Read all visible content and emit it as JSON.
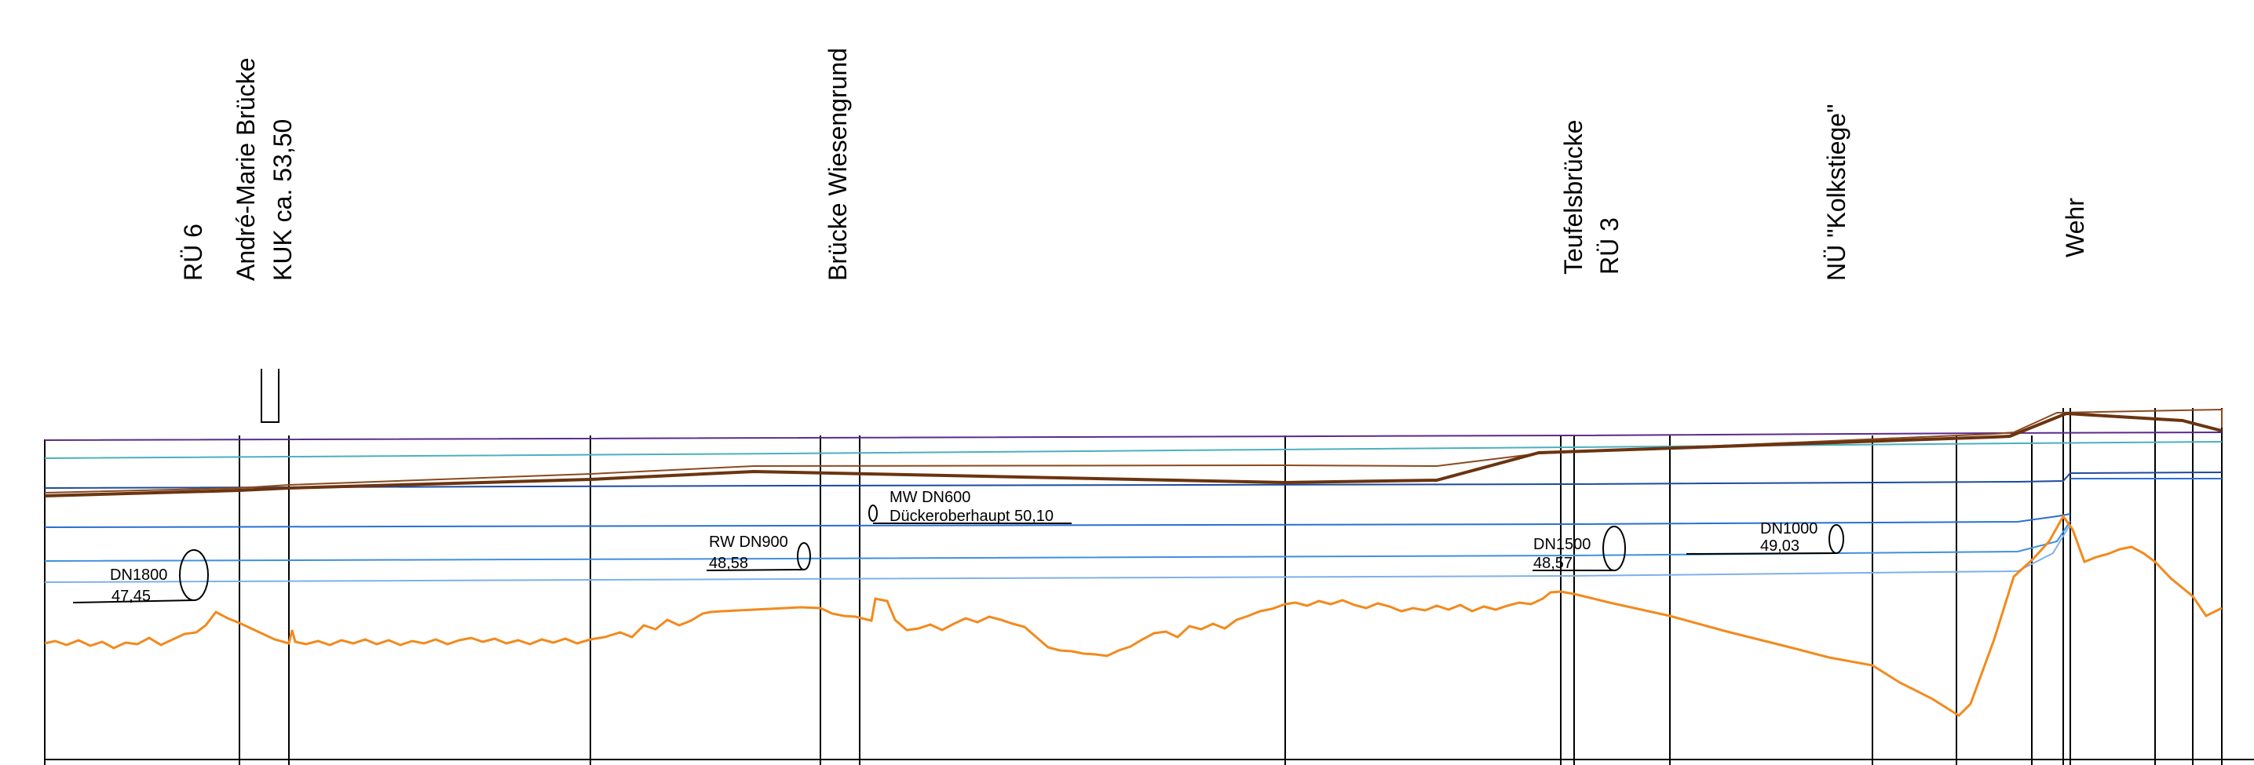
{
  "headers": {
    "ru6": "RÜ 6",
    "andre_marie_line1": "André-Marie Brücke",
    "andre_marie_line2": "KUK ca. 53,50",
    "wiesengrund": "Brücke Wiesengrund",
    "teufels_line1": "Teufelsbrücke",
    "teufels_line2": "RÜ 3",
    "kolkstiege": "NÜ \"Kolkstiege\"",
    "wehr": "Wehr"
  },
  "pipes": {
    "dn1800_name": "DN1800",
    "dn1800_level": "47,45",
    "rw_dn900_name": "RW DN900",
    "rw_dn900_level": "48,58",
    "mw_dn600_name": "MW DN600",
    "mw_dn600_level": "Dückeroberhaupt 50,10",
    "dn1500_name": "DN1500",
    "dn1500_level": "48,57",
    "dn1000_name": "DN1000",
    "dn1000_level": "49,03"
  },
  "colors": {
    "ground": "#f28a1e",
    "crest_thick": "#6b3410",
    "crest_thin": "#8a4a1f",
    "top_line": "#5b2a8c",
    "water_1": "#1f4a9c",
    "water_2": "#2a6fd0",
    "water_3": "#3f8fe0",
    "water_4": "#7fb0e8",
    "water_5": "#4ab0c0"
  }
}
